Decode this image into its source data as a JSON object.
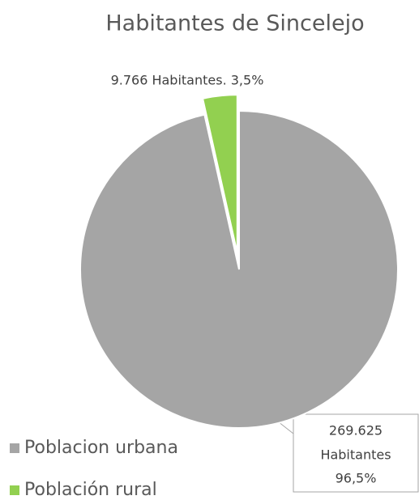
{
  "chart_data": {
    "type": "pie",
    "title": "Habitantes de Sincelejo",
    "categories": [
      "Poblacion urbana",
      "Población rural"
    ],
    "values": [
      269625,
      9766
    ],
    "value_labels": [
      [
        "269.625",
        "Habitantes",
        "96,5%"
      ],
      [
        "9.766 Habitantes. 3,5%"
      ]
    ],
    "colors": [
      "#a5a5a5",
      "#92d050"
    ],
    "legend": "bottom-left"
  }
}
